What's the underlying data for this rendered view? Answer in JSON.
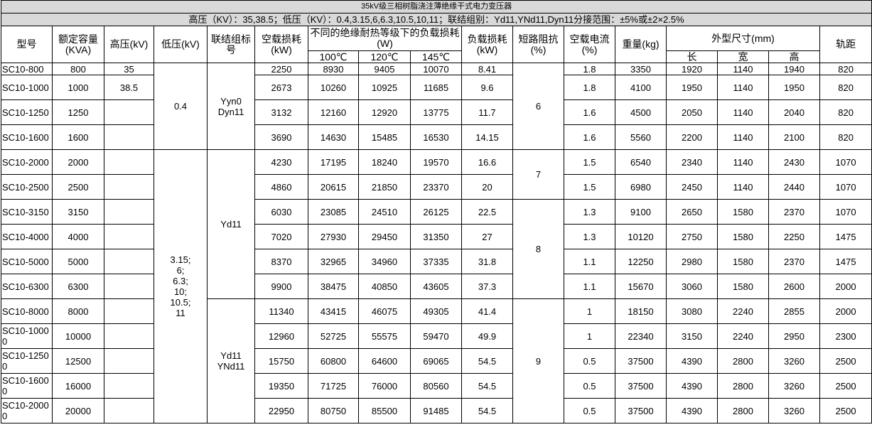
{
  "title": "35kV级三相树脂浇注薄绝缘干式电力变压器",
  "info": "高压（KV）：35,38.5；低压（KV）：0.4,3.15,6,6.3,10.5,10,11；联结组别：Yd11,YNd11,Dyn11分接范围：±5%或±2×2.5%",
  "headers": {
    "model": "型号",
    "capacity": "额定容量(KVA)",
    "hv": "高压(kV)",
    "lv": "低压(kV)",
    "group": "联结组标号",
    "noload_loss": "空载损耗(kW)",
    "load_loss_grades": "不同的绝缘耐热等级下的负载损耗(W)",
    "t100": "100℃",
    "t120": "120℃",
    "t145": "145℃",
    "load_loss": "负载损耗(kW)",
    "impedance": "短路阻抗(%)",
    "noload_current": "空载电流(%)",
    "weight": "重量(kg)",
    "dimensions": "外型尺寸(mm)",
    "length": "长",
    "width": "宽",
    "height": "高",
    "gauge": "轨距"
  },
  "rows": [
    [
      "SC10-800",
      "800",
      "35",
      "2250",
      "8930",
      "9405",
      "10070",
      "8.41",
      "1.8",
      "3350",
      "1920",
      "1140",
      "1940",
      "820"
    ],
    [
      "SC10-1000",
      "1000",
      "38.5",
      "2673",
      "10260",
      "10925",
      "11685",
      "9.6",
      "1.8",
      "4100",
      "1950",
      "1140",
      "1950",
      "820"
    ],
    [
      "SC10-1250",
      "1250",
      "",
      "3132",
      "12160",
      "12920",
      "13775",
      "11.7",
      "1.6",
      "4500",
      "2050",
      "1140",
      "2040",
      "820"
    ],
    [
      "SC10-1600",
      "1600",
      "",
      "3690",
      "14630",
      "15485",
      "16530",
      "14.15",
      "1.6",
      "5560",
      "2200",
      "1140",
      "2100",
      "820"
    ],
    [
      "SC10-2000",
      "2000",
      "",
      "4230",
      "17195",
      "18240",
      "19570",
      "16.6",
      "1.5",
      "6540",
      "2340",
      "1140",
      "2430",
      "1070"
    ],
    [
      "SC10-2500",
      "2500",
      "",
      "4860",
      "20615",
      "21850",
      "23370",
      "20",
      "1.5",
      "6980",
      "2450",
      "1140",
      "2440",
      "1070"
    ],
    [
      "SC10-3150",
      "3150",
      "",
      "6030",
      "23085",
      "24510",
      "26125",
      "22.5",
      "1.3",
      "9100",
      "2650",
      "1580",
      "2370",
      "1070"
    ],
    [
      "SC10-4000",
      "4000",
      "",
      "7020",
      "27930",
      "29450",
      "31350",
      "27",
      "1.3",
      "10120",
      "2750",
      "1580",
      "2250",
      "1475"
    ],
    [
      "SC10-5000",
      "5000",
      "",
      "8370",
      "32965",
      "34960",
      "37335",
      "31.8",
      "1.1",
      "12250",
      "2980",
      "1580",
      "2370",
      "1475"
    ],
    [
      "SC10-6300",
      "6300",
      "",
      "9900",
      "38475",
      "40850",
      "43605",
      "37.3",
      "1.1",
      "15670",
      "3060",
      "1580",
      "2600",
      "2000"
    ],
    [
      "SC10-8000",
      "8000",
      "",
      "11340",
      "43415",
      "46075",
      "49305",
      "41.4",
      "1",
      "18150",
      "3080",
      "2240",
      "2855",
      "2000"
    ],
    [
      "SC10-10000",
      "10000",
      "",
      "12960",
      "52725",
      "55575",
      "59470",
      "49.9",
      "1",
      "22340",
      "3150",
      "2240",
      "2950",
      "2300"
    ],
    [
      "SC10-12500",
      "12500",
      "",
      "15750",
      "60800",
      "64600",
      "69065",
      "54.5",
      "0.5",
      "37500",
      "4390",
      "2800",
      "3260",
      "2500"
    ],
    [
      "SC10-16000",
      "16000",
      "",
      "19350",
      "71725",
      "76000",
      "80560",
      "54.5",
      "0.5",
      "37500",
      "4390",
      "2800",
      "3260",
      "2500"
    ],
    [
      "SC10-20000",
      "20000",
      "",
      "22950",
      "80750",
      "85500",
      "91485",
      "54.5",
      "0.5",
      "37500",
      "4390",
      "2800",
      "3260",
      "2500"
    ]
  ],
  "lv_groups": [
    {
      "start": 0,
      "span": 4,
      "value": "0.4"
    },
    {
      "start": 4,
      "span": 11,
      "value": "3.15;\n6;\n6.3;\n10;\n10.5;\n11"
    }
  ],
  "group_groups": [
    {
      "start": 0,
      "span": 4,
      "value": "Yyn0\nDyn11"
    },
    {
      "start": 4,
      "span": 6,
      "value": "Yd11"
    },
    {
      "start": 10,
      "span": 5,
      "value": "Yd11\nYNd11"
    }
  ],
  "impedance_groups": [
    {
      "start": 0,
      "span": 4,
      "value": "6"
    },
    {
      "start": 4,
      "span": 2,
      "value": "7"
    },
    {
      "start": 6,
      "span": 4,
      "value": "8"
    },
    {
      "start": 10,
      "span": 5,
      "value": "9"
    }
  ]
}
